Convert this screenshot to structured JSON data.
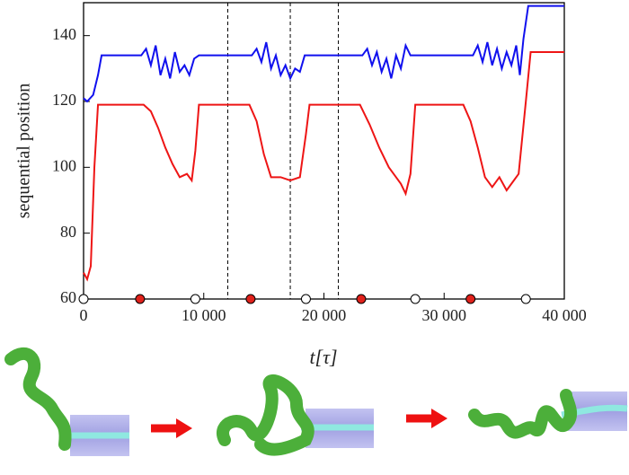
{
  "chart_data": {
    "type": "line",
    "y_label": "sequential position",
    "x_label": "t[τ]",
    "xlim": [
      0,
      40000
    ],
    "ylim": [
      60,
      150
    ],
    "xticks": [
      0,
      {
        "value": 10000,
        "label": "10 000"
      },
      {
        "value": 20000,
        "label": "20 000"
      },
      {
        "value": 30000,
        "label": "30 000"
      },
      {
        "value": 40000,
        "label": "40 000"
      }
    ],
    "yticks": [
      60,
      80,
      100,
      120,
      140
    ],
    "vlines": [
      12000,
      17200,
      21200
    ],
    "open_markers": [
      0,
      9300,
      18500,
      27600,
      36800
    ],
    "filled_markers": [
      4700,
      13900,
      23100,
      32200
    ],
    "marker_color": "#e0211b",
    "series": [
      {
        "color": "#1010ee",
        "x": [
          0,
          300,
          800,
          1200,
          1500,
          4800,
          5200,
          5600,
          6000,
          6400,
          6800,
          7200,
          7600,
          8000,
          8400,
          8800,
          9200,
          9600,
          14000,
          14400,
          14800,
          15200,
          15600,
          16000,
          16400,
          16800,
          17200,
          17600,
          18000,
          18400,
          23200,
          23600,
          24000,
          24400,
          24800,
          25200,
          25600,
          26000,
          26400,
          26800,
          27200,
          32400,
          32800,
          33200,
          33600,
          34000,
          34400,
          34800,
          35200,
          35600,
          36000,
          36300,
          36600,
          37000,
          40000
        ],
        "values": [
          121,
          120,
          122,
          128,
          134,
          134,
          136,
          131,
          137,
          128,
          133,
          127,
          135,
          129,
          131,
          128,
          133,
          134,
          134,
          136,
          132,
          138,
          130,
          134,
          128,
          131,
          127,
          130,
          129,
          134,
          134,
          136,
          131,
          135,
          129,
          133,
          127,
          134,
          130,
          137,
          134,
          134,
          137,
          132,
          138,
          131,
          136,
          130,
          135,
          131,
          137,
          128,
          139,
          149,
          149
        ]
      },
      {
        "color": "#ee1515",
        "x": [
          0,
          300,
          600,
          900,
          1200,
          5000,
          5600,
          6200,
          6800,
          7400,
          8000,
          8600,
          9000,
          9300,
          9600,
          13800,
          14400,
          15000,
          15600,
          16400,
          17200,
          18000,
          18500,
          18800,
          23000,
          23800,
          24600,
          25400,
          26000,
          26400,
          26800,
          27200,
          27600,
          31600,
          32200,
          32800,
          33400,
          34000,
          34600,
          35200,
          35800,
          36200,
          36800,
          37200,
          40000
        ],
        "values": [
          68,
          66,
          70,
          100,
          119,
          119,
          117,
          112,
          106,
          101,
          97,
          98,
          96,
          105,
          119,
          119,
          114,
          104,
          97,
          97,
          96,
          97,
          110,
          119,
          119,
          113,
          106,
          100,
          97,
          95,
          92,
          98,
          119,
          119,
          114,
          106,
          97,
          94,
          97,
          93,
          96,
          98,
          120,
          135,
          135
        ]
      }
    ]
  }
}
